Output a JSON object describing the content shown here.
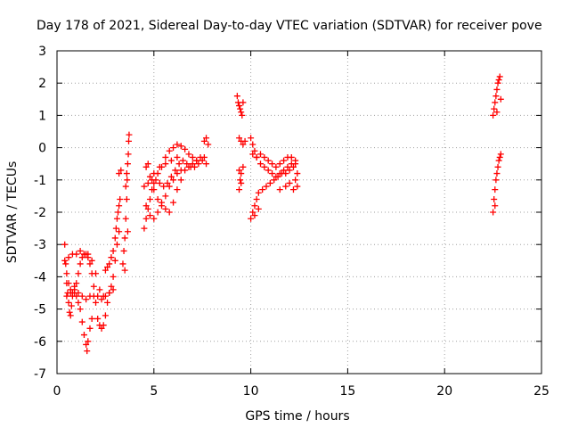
{
  "chart_data": {
    "type": "scatter",
    "title": "Day 178 of 2021, Sidereal Day-to-day VTEC variation (SDTVAR) for receiver pove",
    "xlabel": "GPS time / hours",
    "ylabel": "SDTVAR / TECUs",
    "xlim": [
      0,
      25
    ],
    "ylim": [
      -7,
      3
    ],
    "xticks": [
      "0",
      "5",
      "10",
      "15",
      "20",
      "25"
    ],
    "yticks": [
      "-7",
      "-6",
      "-5",
      "-4",
      "-3",
      "-2",
      "-1",
      "0",
      "1",
      "2",
      "3"
    ],
    "grid": true,
    "marker": "+",
    "marker_color": "#ff0000",
    "series": [
      {
        "name": "",
        "points": [
          [
            0.4,
            -3.0
          ],
          [
            0.45,
            -3.6
          ],
          [
            0.5,
            -4.2
          ],
          [
            0.55,
            -4.5
          ],
          [
            0.6,
            -4.8
          ],
          [
            0.65,
            -5.1
          ],
          [
            0.7,
            -5.2
          ],
          [
            0.75,
            -4.9
          ],
          [
            0.8,
            -4.6
          ],
          [
            0.9,
            -4.5
          ],
          [
            1.0,
            -4.6
          ],
          [
            1.1,
            -4.8
          ],
          [
            1.2,
            -5.0
          ],
          [
            1.3,
            -5.4
          ],
          [
            1.4,
            -5.8
          ],
          [
            1.5,
            -6.1
          ],
          [
            1.55,
            -6.3
          ],
          [
            1.6,
            -6.0
          ],
          [
            1.7,
            -5.6
          ],
          [
            1.8,
            -5.3
          ],
          [
            0.4,
            -3.5
          ],
          [
            0.5,
            -3.9
          ],
          [
            0.6,
            -4.2
          ],
          [
            0.7,
            -4.4
          ],
          [
            0.8,
            -4.5
          ],
          [
            0.9,
            -4.4
          ],
          [
            1.0,
            -4.2
          ],
          [
            1.1,
            -3.9
          ],
          [
            1.2,
            -3.6
          ],
          [
            1.3,
            -3.4
          ],
          [
            1.4,
            -3.3
          ],
          [
            1.5,
            -3.3
          ],
          [
            1.6,
            -3.4
          ],
          [
            1.7,
            -3.6
          ],
          [
            1.8,
            -3.9
          ],
          [
            1.9,
            -4.3
          ],
          [
            2.0,
            -4.8
          ],
          [
            2.1,
            -5.3
          ],
          [
            2.2,
            -5.5
          ],
          [
            2.3,
            -5.6
          ],
          [
            2.4,
            -5.5
          ],
          [
            2.5,
            -5.2
          ],
          [
            2.6,
            -4.8
          ],
          [
            2.7,
            -4.5
          ],
          [
            2.8,
            -4.3
          ],
          [
            2.9,
            -4.0
          ],
          [
            0.5,
            -4.6
          ],
          [
            0.7,
            -4.5
          ],
          [
            0.9,
            -4.3
          ],
          [
            1.1,
            -4.5
          ],
          [
            1.3,
            -4.6
          ],
          [
            1.5,
            -4.7
          ],
          [
            1.7,
            -4.6
          ],
          [
            1.9,
            -4.6
          ],
          [
            2.1,
            -4.6
          ],
          [
            2.3,
            -4.7
          ],
          [
            2.5,
            -4.6
          ],
          [
            2.7,
            -4.5
          ],
          [
            2.9,
            -4.4
          ],
          [
            0.6,
            -3.4
          ],
          [
            0.8,
            -3.3
          ],
          [
            1.0,
            -3.3
          ],
          [
            1.2,
            -3.2
          ],
          [
            1.4,
            -3.3
          ],
          [
            1.6,
            -3.3
          ],
          [
            1.8,
            -3.5
          ],
          [
            2.0,
            -3.9
          ],
          [
            2.2,
            -4.4
          ],
          [
            2.4,
            -4.6
          ],
          [
            2.5,
            -3.8
          ],
          [
            2.6,
            -3.7
          ],
          [
            2.7,
            -3.6
          ],
          [
            2.8,
            -3.4
          ],
          [
            2.9,
            -3.2
          ],
          [
            3.0,
            -2.8
          ],
          [
            3.05,
            -2.5
          ],
          [
            3.1,
            -2.2
          ],
          [
            3.15,
            -2.0
          ],
          [
            3.2,
            -1.8
          ],
          [
            3.25,
            -1.6
          ],
          [
            3.0,
            -3.5
          ],
          [
            3.1,
            -3.0
          ],
          [
            3.2,
            -2.6
          ],
          [
            3.2,
            -0.8
          ],
          [
            3.3,
            -0.7
          ],
          [
            3.4,
            -3.6
          ],
          [
            3.45,
            -3.2
          ],
          [
            3.5,
            -2.8
          ],
          [
            3.55,
            -2.2
          ],
          [
            3.6,
            -1.6
          ],
          [
            3.62,
            -1.0
          ],
          [
            3.65,
            -0.5
          ],
          [
            3.68,
            -0.2
          ],
          [
            3.7,
            0.2
          ],
          [
            3.72,
            0.4
          ],
          [
            3.5,
            -3.8
          ],
          [
            3.55,
            -1.2
          ],
          [
            3.6,
            -0.8
          ],
          [
            3.65,
            -2.6
          ],
          [
            4.5,
            -2.5
          ],
          [
            4.6,
            -2.2
          ],
          [
            4.7,
            -1.9
          ],
          [
            4.8,
            -1.6
          ],
          [
            4.9,
            -1.3
          ],
          [
            5.0,
            -1.1
          ],
          [
            5.2,
            -0.8
          ],
          [
            5.4,
            -0.6
          ],
          [
            5.6,
            -0.3
          ],
          [
            5.8,
            -0.1
          ],
          [
            6.0,
            0.0
          ],
          [
            6.2,
            0.1
          ],
          [
            6.4,
            0.05
          ],
          [
            6.6,
            -0.05
          ],
          [
            6.8,
            -0.2
          ],
          [
            7.0,
            -0.3
          ],
          [
            7.2,
            -0.4
          ],
          [
            4.6,
            -0.6
          ],
          [
            4.8,
            -0.9
          ],
          [
            5.0,
            -1.3
          ],
          [
            5.2,
            -1.6
          ],
          [
            5.4,
            -1.7
          ],
          [
            5.6,
            -1.5
          ],
          [
            5.8,
            -1.2
          ],
          [
            6.0,
            -1.0
          ],
          [
            6.2,
            -0.8
          ],
          [
            6.4,
            -0.7
          ],
          [
            6.6,
            -0.7
          ],
          [
            6.8,
            -0.6
          ],
          [
            7.0,
            -0.5
          ],
          [
            7.2,
            -0.4
          ],
          [
            7.4,
            -0.3
          ],
          [
            7.6,
            -0.3
          ],
          [
            7.7,
            -0.5
          ],
          [
            4.5,
            -1.2
          ],
          [
            4.7,
            -1.1
          ],
          [
            4.9,
            -1.0
          ],
          [
            5.1,
            -1.0
          ],
          [
            5.3,
            -1.1
          ],
          [
            5.5,
            -1.2
          ],
          [
            5.7,
            -1.1
          ],
          [
            5.9,
            -0.9
          ],
          [
            6.1,
            -0.7
          ],
          [
            6.3,
            -0.5
          ],
          [
            6.5,
            -0.4
          ],
          [
            6.7,
            -0.5
          ],
          [
            6.9,
            -0.6
          ],
          [
            7.1,
            -0.6
          ],
          [
            7.3,
            -0.5
          ],
          [
            7.5,
            -0.4
          ],
          [
            4.7,
            -0.5
          ],
          [
            5.0,
            -0.8
          ],
          [
            5.3,
            -0.6
          ],
          [
            5.6,
            -0.5
          ],
          [
            5.9,
            -0.4
          ],
          [
            6.2,
            -0.3
          ],
          [
            7.6,
            0.2
          ],
          [
            7.7,
            0.3
          ],
          [
            7.8,
            0.1
          ],
          [
            4.6,
            -1.8
          ],
          [
            4.8,
            -2.1
          ],
          [
            5.0,
            -2.2
          ],
          [
            5.2,
            -2.0
          ],
          [
            5.4,
            -1.8
          ],
          [
            5.6,
            -1.9
          ],
          [
            5.8,
            -2.0
          ],
          [
            6.0,
            -1.7
          ],
          [
            6.2,
            -1.3
          ],
          [
            6.4,
            -1.0
          ],
          [
            9.3,
            1.6
          ],
          [
            9.35,
            1.4
          ],
          [
            9.4,
            1.3
          ],
          [
            9.45,
            1.2
          ],
          [
            9.5,
            1.1
          ],
          [
            9.55,
            1.0
          ],
          [
            9.6,
            1.4
          ],
          [
            9.4,
            0.3
          ],
          [
            9.5,
            0.2
          ],
          [
            9.6,
            0.1
          ],
          [
            9.7,
            0.2
          ],
          [
            9.4,
            -0.7
          ],
          [
            9.5,
            -0.8
          ],
          [
            9.6,
            -0.6
          ],
          [
            9.4,
            -1.3
          ],
          [
            9.45,
            -1.0
          ],
          [
            9.5,
            -1.1
          ],
          [
            10.0,
            -2.2
          ],
          [
            10.1,
            -2.0
          ],
          [
            10.2,
            -1.8
          ],
          [
            10.3,
            -1.6
          ],
          [
            10.4,
            -1.4
          ],
          [
            10.6,
            -1.3
          ],
          [
            10.8,
            -1.2
          ],
          [
            11.0,
            -1.1
          ],
          [
            11.2,
            -1.0
          ],
          [
            11.4,
            -0.9
          ],
          [
            11.6,
            -0.8
          ],
          [
            11.8,
            -0.8
          ],
          [
            12.0,
            -0.7
          ],
          [
            12.2,
            -0.6
          ],
          [
            10.0,
            0.3
          ],
          [
            10.1,
            0.1
          ],
          [
            10.2,
            -0.1
          ],
          [
            10.3,
            -0.3
          ],
          [
            10.5,
            -0.5
          ],
          [
            10.7,
            -0.6
          ],
          [
            10.9,
            -0.7
          ],
          [
            11.1,
            -0.8
          ],
          [
            11.3,
            -0.9
          ],
          [
            11.5,
            -0.8
          ],
          [
            11.7,
            -0.7
          ],
          [
            11.9,
            -0.6
          ],
          [
            12.1,
            -0.5
          ],
          [
            12.3,
            -0.4
          ],
          [
            10.1,
            -0.2
          ],
          [
            10.3,
            -0.3
          ],
          [
            10.5,
            -0.2
          ],
          [
            10.7,
            -0.3
          ],
          [
            10.9,
            -0.4
          ],
          [
            11.1,
            -0.5
          ],
          [
            11.3,
            -0.6
          ],
          [
            11.5,
            -0.5
          ],
          [
            11.7,
            -0.4
          ],
          [
            11.9,
            -0.3
          ],
          [
            12.1,
            -0.3
          ],
          [
            12.3,
            -0.5
          ],
          [
            11.5,
            -1.3
          ],
          [
            11.8,
            -1.2
          ],
          [
            12.0,
            -1.1
          ],
          [
            12.2,
            -1.3
          ],
          [
            12.3,
            -1.0
          ],
          [
            12.4,
            -0.8
          ],
          [
            12.4,
            -1.2
          ],
          [
            10.2,
            -2.1
          ],
          [
            10.4,
            -1.9
          ],
          [
            22.5,
            -2.0
          ],
          [
            22.55,
            -1.6
          ],
          [
            22.6,
            -1.3
          ],
          [
            22.65,
            -1.0
          ],
          [
            22.7,
            -0.8
          ],
          [
            22.75,
            -0.6
          ],
          [
            22.8,
            -0.4
          ],
          [
            22.85,
            -0.3
          ],
          [
            22.9,
            -0.2
          ],
          [
            22.6,
            -1.8
          ],
          [
            22.5,
            1.0
          ],
          [
            22.55,
            1.2
          ],
          [
            22.6,
            1.4
          ],
          [
            22.65,
            1.6
          ],
          [
            22.7,
            1.8
          ],
          [
            22.75,
            2.0
          ],
          [
            22.8,
            2.1
          ],
          [
            22.85,
            2.2
          ],
          [
            22.9,
            1.5
          ],
          [
            22.7,
            1.1
          ]
        ]
      }
    ]
  }
}
